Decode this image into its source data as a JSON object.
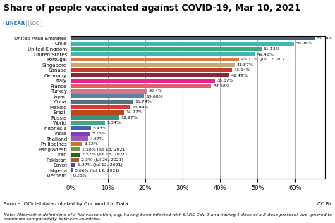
{
  "chart_data": {
    "type": "bar",
    "orientation": "horizontal",
    "title": "Share of people vaccinated against COVID-19, Mar 10, 2021",
    "categories": [
      "United Arab Emirates",
      "Chile",
      "United Kingdom",
      "United States",
      "Portugal",
      "Singapore",
      "Canada",
      "Germany",
      "Italy",
      "France",
      "Turkey",
      "Japan",
      "Cuba",
      "Mexico",
      "Brazil",
      "Russia",
      "World",
      "Indonesia",
      "India",
      "Thailand",
      "Philippines",
      "Bangladesh",
      "Iran",
      "Pakistan",
      "Egypt",
      "Nigeria",
      "Vietnam"
    ],
    "values": [
      65.14,
      59.76,
      51.13,
      49.46,
      45.11,
      43.87,
      43.14,
      42.49,
      38.67,
      37.58,
      20.4,
      19.68,
      16.74,
      15.94,
      14.27,
      12.97,
      9.34,
      5.43,
      5.26,
      4.67,
      3.12,
      2.58,
      2.52,
      2.3,
      1.37,
      0.66,
      0.28
    ],
    "value_labels": [
      "65.14%",
      "59.76%",
      "51.13%",
      "49.46%",
      "45.11% (Jul 12, 2021)",
      "43.87%",
      "43.14%",
      "42.49%",
      "38.67%",
      "37.58%",
      "20.4%",
      "19.68%",
      "16.74%",
      "15.94%",
      "14.27%",
      "12.97%",
      "9.34%",
      "5.43%",
      "5.26%",
      "4.67%",
      "3.12%",
      "2.58% (Jul 13, 2021)",
      "2.52% (Jul 13, 2021)",
      "2.3% (Jul 26, 2021)",
      "1.37% (Jul 12, 2021)",
      "0.66% (Jul 12, 2021)",
      "0.28%"
    ],
    "data_labels": true,
    "colors": [
      "#4a6275",
      "#3db8b2",
      "#3aab76",
      "#40b8b0",
      "#d97b3a",
      "#c4a97a",
      "#c43b2b",
      "#8c2535",
      "#e8248c",
      "#e06070",
      "#d97880",
      "#5a82a8",
      "#5a6e82",
      "#e03535",
      "#b84818",
      "#3a907a",
      "#40a882",
      "#4464b0",
      "#7b45b5",
      "#9b5ab8",
      "#c47828",
      "#789640",
      "#2d6030",
      "#a06028",
      "#6040a0",
      "#4060a0",
      "#50a0c8"
    ],
    "xlim": [
      0,
      68
    ],
    "xticks": [
      {
        "value": 0,
        "label": "0%"
      },
      {
        "value": 10,
        "label": "10%"
      },
      {
        "value": 20,
        "label": "20%"
      },
      {
        "value": 30,
        "label": "30%"
      },
      {
        "value": 40,
        "label": "40%"
      },
      {
        "value": 50,
        "label": "50%"
      },
      {
        "value": 60,
        "label": "60%"
      }
    ],
    "grid": true,
    "annotations": [
      "Source: Official data collated by Our World in Data",
      "Note: Alternative definitions of a full vaccination, e.g. having been infected with SARS-CoV-2 and having 1 dose of a 2-dose protocol, are ignored to maximize comparability between countries.",
      "CC BY",
      "LINEAR",
      "LOG"
    ]
  }
}
